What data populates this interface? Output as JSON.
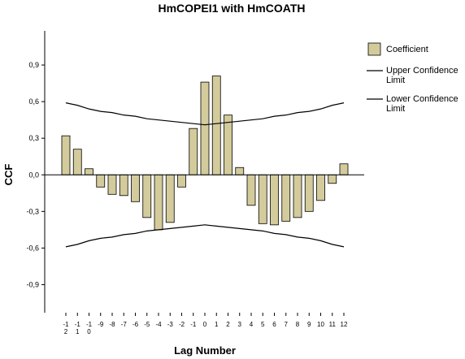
{
  "chart_data": {
    "type": "bar",
    "title": "HmCOPEI1 with HmCOATH",
    "x_label": "Lag Number",
    "y_label": "CCF",
    "categories": [
      "-12",
      "-11",
      "-10",
      "-9",
      "-8",
      "-7",
      "-6",
      "-5",
      "-4",
      "-3",
      "-2",
      "-1",
      "0",
      "1",
      "2",
      "3",
      "4",
      "5",
      "6",
      "7",
      "8",
      "9",
      "10",
      "11",
      "12"
    ],
    "series": [
      {
        "name": "Coefficient",
        "color": "#d3cb9b",
        "type": "bar",
        "values": [
          0.32,
          0.21,
          0.05,
          -0.1,
          -0.16,
          -0.17,
          -0.22,
          -0.35,
          -0.45,
          -0.39,
          -0.1,
          0.38,
          0.76,
          0.81,
          0.49,
          0.06,
          -0.25,
          -0.4,
          -0.41,
          -0.38,
          -0.35,
          -0.3,
          -0.21,
          -0.07,
          0.09
        ]
      },
      {
        "name": "Upper Confidence Limit",
        "color": "#000000",
        "type": "line",
        "values": [
          0.59,
          0.57,
          0.54,
          0.52,
          0.51,
          0.49,
          0.48,
          0.46,
          0.45,
          0.44,
          0.43,
          0.42,
          0.41,
          0.42,
          0.43,
          0.44,
          0.45,
          0.46,
          0.48,
          0.49,
          0.51,
          0.52,
          0.54,
          0.57,
          0.59
        ]
      },
      {
        "name": "Lower Confidence Limit",
        "color": "#000000",
        "type": "line",
        "values": [
          -0.59,
          -0.57,
          -0.54,
          -0.52,
          -0.51,
          -0.49,
          -0.48,
          -0.46,
          -0.45,
          -0.44,
          -0.43,
          -0.42,
          -0.41,
          -0.42,
          -0.43,
          -0.44,
          -0.45,
          -0.46,
          -0.48,
          -0.49,
          -0.51,
          -0.52,
          -0.54,
          -0.57,
          -0.59
        ]
      }
    ],
    "ylim": [
      -1.13,
      1.18
    ],
    "yticks": [
      {
        "value": -0.9,
        "label": "-0,9"
      },
      {
        "value": -0.6,
        "label": "-0,6"
      },
      {
        "value": -0.3,
        "label": "-0,3"
      },
      {
        "value": 0,
        "label": "0,0"
      },
      {
        "value": 0.3,
        "label": "0,3"
      },
      {
        "value": 0.6,
        "label": "0,6"
      },
      {
        "value": 0.9,
        "label": "0,9"
      }
    ],
    "grid": false,
    "legend": "right"
  }
}
